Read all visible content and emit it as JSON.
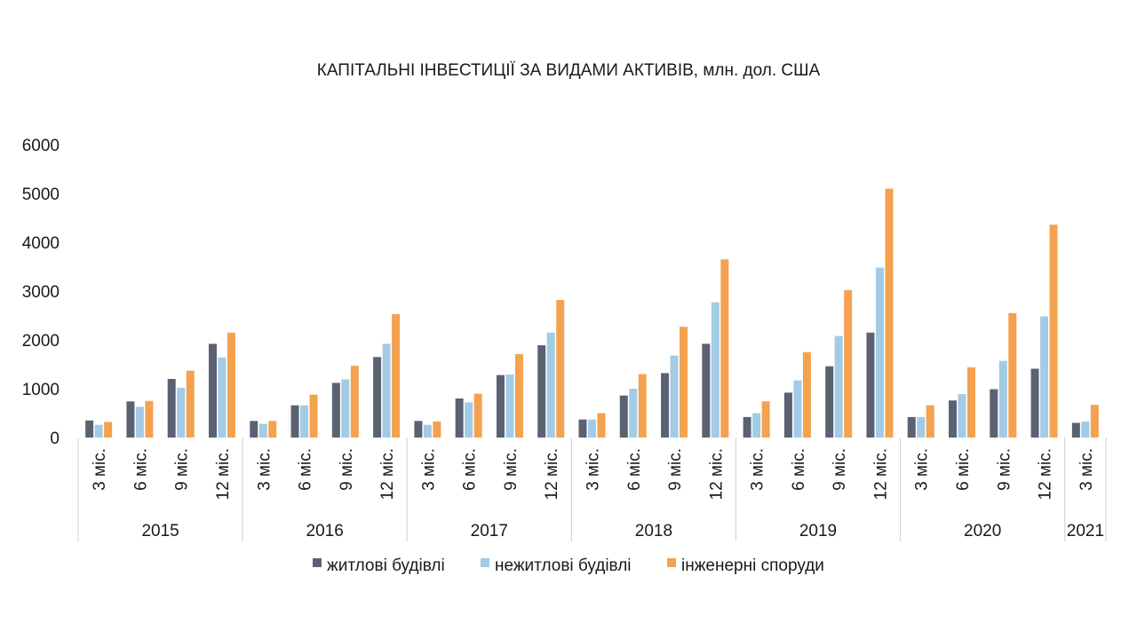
{
  "chart_data": {
    "type": "bar",
    "title": "КАПІТАЛЬНІ ІНВЕСТИЦІЇ ЗА ВИДАМИ АКТИВІВ, млн. дол. США",
    "xlabel": "",
    "ylabel": "",
    "ylim": [
      0,
      6000
    ],
    "yticks": [
      0,
      1000,
      2000,
      3000,
      4000,
      5000,
      6000
    ],
    "grid": false,
    "legend": "bottom",
    "groups": [
      {
        "year": "2015",
        "categories": [
          "3 міс.",
          "6 міс.",
          "9 міс.",
          "12 міс."
        ]
      },
      {
        "year": "2016",
        "categories": [
          "3 міс.",
          "6 міс.",
          "9 міс.",
          "12 міс."
        ]
      },
      {
        "year": "2017",
        "categories": [
          "3 міс.",
          "6 міс.",
          "9 міс.",
          "12 міс."
        ]
      },
      {
        "year": "2018",
        "categories": [
          "3 міс.",
          "6 міс.",
          "9 міс.",
          "12 міс."
        ]
      },
      {
        "year": "2019",
        "categories": [
          "3 міс.",
          "6 міс.",
          "9 міс.",
          "12 міс."
        ]
      },
      {
        "year": "2020",
        "categories": [
          "3 міс.",
          "6 міс.",
          "9 міс.",
          "12 міс."
        ]
      },
      {
        "year": "2021",
        "categories": [
          "3 міс."
        ]
      }
    ],
    "series": [
      {
        "name": "житлові будівлі",
        "color": "#5a6272",
        "values": [
          350,
          740,
          1200,
          1920,
          340,
          660,
          1120,
          1650,
          340,
          800,
          1280,
          1890,
          370,
          860,
          1320,
          1920,
          420,
          920,
          1460,
          2150,
          420,
          760,
          990,
          1410,
          300
        ]
      },
      {
        "name": "нежитлові будівлі",
        "color": "#a2cbe5",
        "values": [
          260,
          630,
          1020,
          1640,
          280,
          660,
          1190,
          1920,
          260,
          720,
          1290,
          2150,
          370,
          1000,
          1680,
          2770,
          500,
          1170,
          2080,
          3480,
          420,
          890,
          1570,
          2480,
          330
        ]
      },
      {
        "name": "інженерні споруди",
        "color": "#f4a24f",
        "values": [
          320,
          750,
          1370,
          2150,
          340,
          880,
          1470,
          2530,
          330,
          900,
          1710,
          2820,
          500,
          1300,
          2270,
          3650,
          740,
          1750,
          3020,
          5100,
          660,
          1440,
          2550,
          4360,
          670
        ]
      }
    ]
  }
}
